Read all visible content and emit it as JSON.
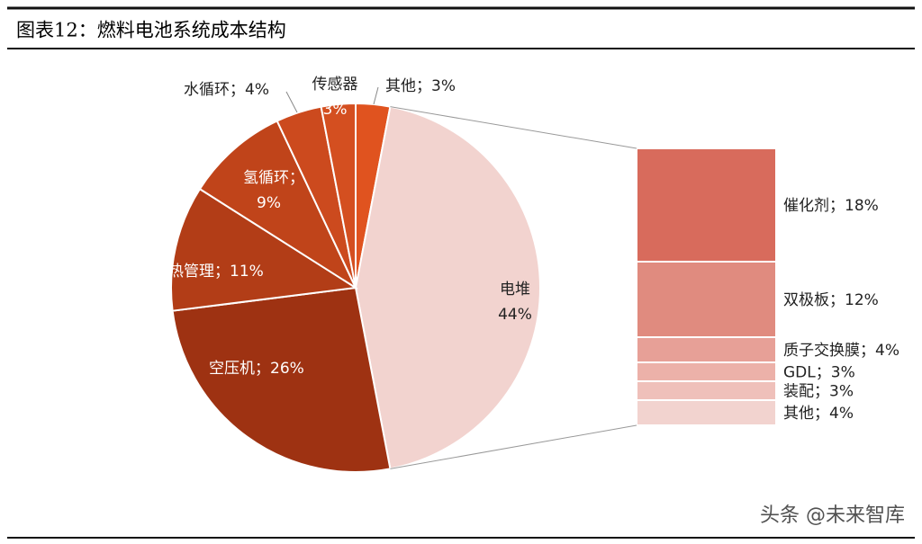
{
  "chart_data": {
    "type": "pie-of-bar",
    "title": "图表12：燃料电池系统成本结构",
    "separator": "；",
    "pie": {
      "categories": [
        "其他",
        "电堆",
        "空压机",
        "热管理",
        "氢循环",
        "水循环",
        "传感器"
      ],
      "values": [
        3,
        44,
        26,
        11,
        9,
        4,
        3
      ],
      "value_labels": [
        "3%",
        "44%",
        "26%",
        "11%",
        "9%",
        "4%",
        "3%"
      ],
      "colors": [
        "#e0531f",
        "#f2d3cf",
        "#9e3212",
        "#b23d17",
        "#c0441a",
        "#cc4a1e",
        "#d44f20"
      ]
    },
    "bar": {
      "categories": [
        "催化剂",
        "双极板",
        "质子交换膜",
        "GDL",
        "装配",
        "其他"
      ],
      "values": [
        18,
        12,
        4,
        3,
        3,
        4
      ],
      "value_labels": [
        "18%",
        "12%",
        "4%",
        "3%",
        "3%",
        "4%"
      ],
      "colors": [
        "#d86b5c",
        "#e08b7f",
        "#e7a097",
        "#ecb1a9",
        "#efc0ba",
        "#f2d3cf"
      ]
    },
    "watermark": "头条 @未来智库"
  }
}
